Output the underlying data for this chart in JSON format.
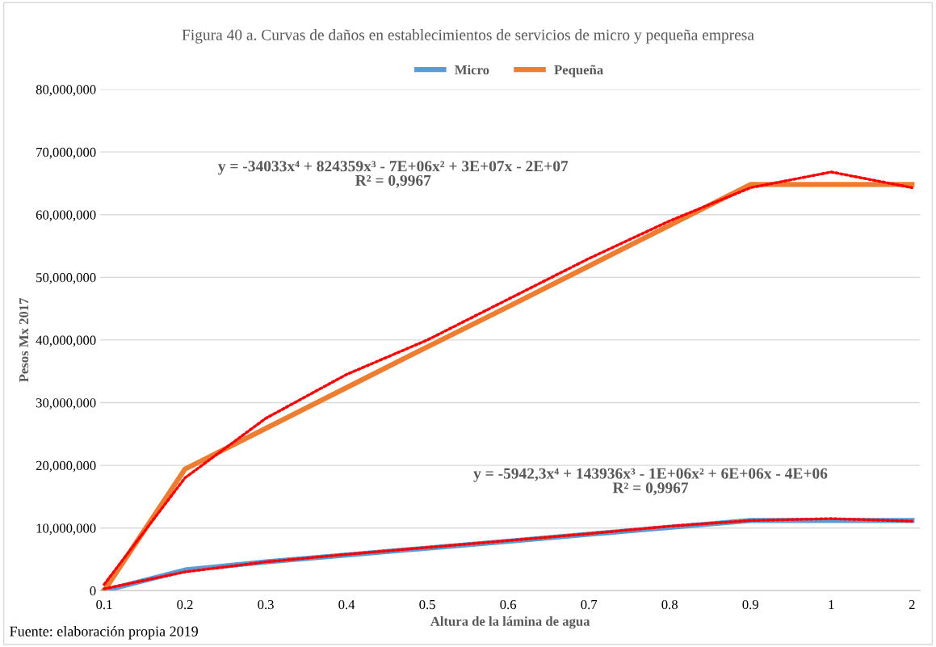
{
  "chart_data": {
    "type": "line",
    "title": "Figura 40 a. Curvas de daños en establecimientos de servicios de micro y pequeña empresa",
    "xlabel": "Altura de la lámina de agua",
    "ylabel": "Pesos Mx 2017",
    "categories": [
      "0.1",
      "0.2",
      "0.3",
      "0.4",
      "0.5",
      "0.6",
      "0.7",
      "0.8",
      "0.9",
      "1",
      "2"
    ],
    "series": [
      {
        "name": "Micro",
        "color": "#5b9bd5",
        "values": [
          0,
          3300000,
          4600000,
          5700000,
          6800000,
          7900000,
          9000000,
          10100000,
          11200000,
          11200000,
          11200000
        ]
      },
      {
        "name": "Pequeña",
        "color": "#ed7d31",
        "values": [
          0,
          19400000,
          25900000,
          32400000,
          38900000,
          45300000,
          51800000,
          58300000,
          64800000,
          64800000,
          64800000
        ]
      },
      {
        "color": "#ff0000",
        "line_style": "dotted",
        "values": [
          1000000,
          18000000,
          27500000,
          34500000,
          40000000,
          46500000,
          53000000,
          59000000,
          64300000,
          66800000,
          64300000
        ]
      },
      {
        "color": "#ff0000",
        "line_style": "dotted",
        "values": [
          300000,
          3000000,
          4600000,
          5800000,
          6900000,
          8000000,
          9100000,
          10300000,
          11200000,
          11500000,
          11100000
        ]
      }
    ],
    "ylim": [
      0,
      80000000
    ],
    "yticks": [
      {
        "value": 0,
        "label": "0"
      },
      {
        "value": 10000000,
        "label": "10,000,000"
      },
      {
        "value": 20000000,
        "label": "20,000,000"
      },
      {
        "value": 30000000,
        "label": "30,000,000"
      },
      {
        "value": 40000000,
        "label": "40,000,000"
      },
      {
        "value": 50000000,
        "label": "50,000,000"
      },
      {
        "value": 60000000,
        "label": "60,000,000"
      },
      {
        "value": 70000000,
        "label": "70,000,000"
      },
      {
        "value": 80000000,
        "label": "80,000,000"
      }
    ],
    "grid": "y",
    "legend": "top",
    "annotations": [
      "y = -34033x⁴ + 824359x³ - 7E+06x² + 3E+07x - 2E+07\nR² = 0,9967",
      "y = -5942,3x⁴ + 143936x³ - 1E+06x² + 6E+06x - 4E+06\nR² = 0,9967",
      "Fuente: elaboración propia 2019"
    ]
  }
}
